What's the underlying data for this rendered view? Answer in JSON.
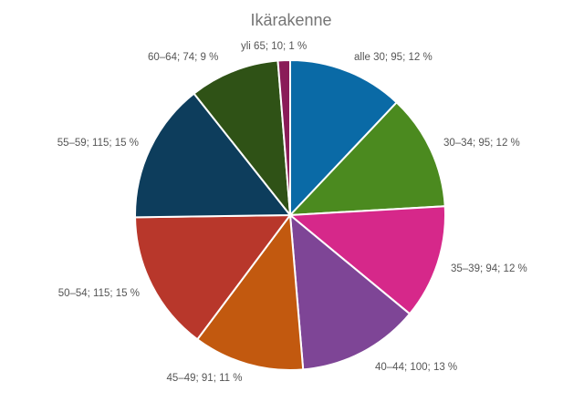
{
  "chart_data": {
    "type": "pie",
    "title": "Ikärakenne",
    "slices": [
      {
        "category": "alle 30",
        "value": 95,
        "percent": 12,
        "label": "alle 30; 95; 12 %",
        "color": "#0a6aa6"
      },
      {
        "category": "30–34",
        "value": 95,
        "percent": 12,
        "label": "30–34; 95; 12 %",
        "color": "#4b8a1f"
      },
      {
        "category": "35–39",
        "value": 94,
        "percent": 12,
        "label": "35–39; 94; 12 %",
        "color": "#d6288a"
      },
      {
        "category": "40–44",
        "value": 100,
        "percent": 13,
        "label": "40–44; 100; 13 %",
        "color": "#7e4596"
      },
      {
        "category": "45–49",
        "value": 91,
        "percent": 11,
        "label": "45–49; 91; 11 %",
        "color": "#c2590f"
      },
      {
        "category": "50–54",
        "value": 115,
        "percent": 15,
        "label": "50–54; 115; 15 %",
        "color": "#b8372b"
      },
      {
        "category": "55–59",
        "value": 115,
        "percent": 15,
        "label": "55–59; 115; 15 %",
        "color": "#0d3d5c"
      },
      {
        "category": "60–64",
        "value": 74,
        "percent": 9,
        "label": "60–64; 74; 9 %",
        "color": "#2f5216"
      },
      {
        "category": "yli 65",
        "value": 10,
        "percent": 1,
        "label": "yli 65; 10; 1 %",
        "color": "#8a1c58"
      }
    ],
    "legend": "none"
  }
}
